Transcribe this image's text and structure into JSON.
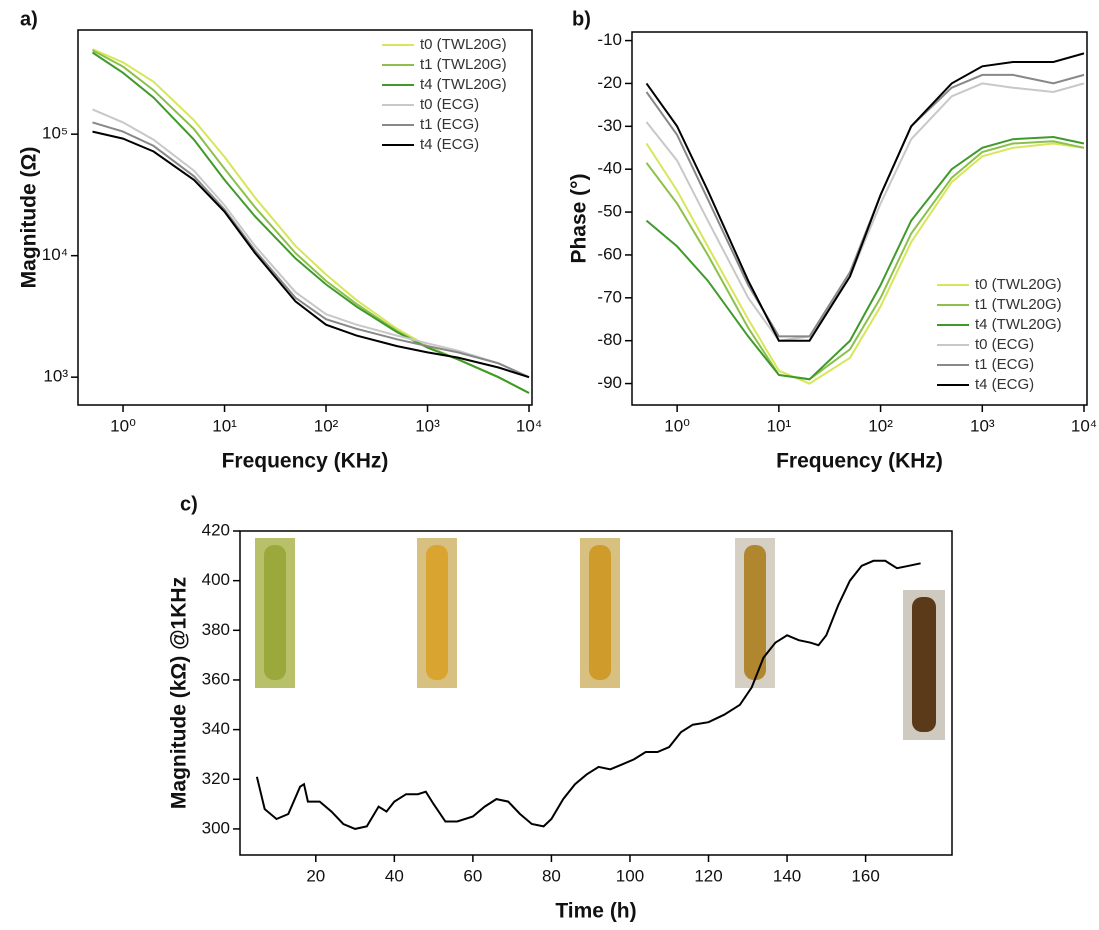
{
  "chart_data": [
    {
      "type": "line",
      "panel_label": "a)",
      "x_label": "Frequency (KHz)",
      "y_label": "Magnitude (Ω)",
      "xscale": "log",
      "yscale": "log",
      "xlim": [
        0.36,
        10700
      ],
      "ylim": [
        590,
        720000
      ],
      "xticks": [
        {
          "value": 1,
          "label": "10⁰"
        },
        {
          "value": 10,
          "label": "10¹"
        },
        {
          "value": 100,
          "label": "10²"
        },
        {
          "value": 1000,
          "label": "10³"
        },
        {
          "value": 10000,
          "label": "10⁴"
        }
      ],
      "yticks": [
        {
          "value": 1000,
          "label": "10³"
        },
        {
          "value": 10000,
          "label": "10⁴"
        },
        {
          "value": 100000,
          "label": "10⁵"
        }
      ],
      "legend": "upper right",
      "x": [
        0.5,
        1,
        2,
        5,
        10,
        20,
        50,
        100,
        200,
        500,
        1000,
        2000,
        5000,
        10000
      ],
      "series": [
        {
          "name": "t0 (TWL20G)",
          "color": "#d7e65a",
          "values": [
            500000,
            390000,
            270000,
            130000,
            65000,
            30000,
            12000,
            7000,
            4300,
            2500,
            1800,
            1400,
            1000,
            740
          ]
        },
        {
          "name": "t1 (TWL20G)",
          "color": "#8cc04a",
          "values": [
            490000,
            360000,
            230000,
            110000,
            52000,
            25000,
            10500,
            6200,
            4000,
            2400,
            1750,
            1400,
            1000,
            740
          ]
        },
        {
          "name": "t4 (TWL20G)",
          "color": "#3f9a2b",
          "values": [
            470000,
            320000,
            200000,
            90000,
            42000,
            21000,
            9500,
            5800,
            3800,
            2350,
            1750,
            1400,
            1000,
            740
          ]
        },
        {
          "name": "t0 (ECG)",
          "color": "#c8c8c8",
          "values": [
            160000,
            125000,
            90000,
            50000,
            26000,
            12000,
            5000,
            3300,
            2700,
            2200,
            1900,
            1650,
            1300,
            1000
          ]
        },
        {
          "name": "t1 (ECG)",
          "color": "#888888",
          "values": [
            125000,
            105000,
            80000,
            45000,
            24000,
            11000,
            4500,
            3000,
            2500,
            2050,
            1800,
            1600,
            1300,
            1000
          ]
        },
        {
          "name": "t4 (ECG)",
          "color": "#000000",
          "values": [
            105000,
            92000,
            72000,
            42000,
            23000,
            10500,
            4200,
            2700,
            2200,
            1800,
            1600,
            1450,
            1200,
            1000
          ]
        }
      ]
    },
    {
      "type": "line",
      "panel_label": "b)",
      "x_label": "Frequency (KHz)",
      "y_label": "Phase (°)",
      "xscale": "log",
      "xlim": [
        0.36,
        10700
      ],
      "ylim": [
        -95,
        -8
      ],
      "xticks": [
        {
          "value": 1,
          "label": "10⁰"
        },
        {
          "value": 10,
          "label": "10¹"
        },
        {
          "value": 100,
          "label": "10²"
        },
        {
          "value": 1000,
          "label": "10³"
        },
        {
          "value": 10000,
          "label": "10⁴"
        }
      ],
      "yticks": [
        -90,
        -80,
        -70,
        -60,
        -50,
        -40,
        -30,
        -20,
        -10
      ],
      "legend": "lower right",
      "x": [
        0.5,
        1,
        2,
        5,
        10,
        20,
        50,
        100,
        200,
        500,
        1000,
        2000,
        5000,
        10000
      ],
      "series": [
        {
          "name": "t0 (TWL20G)",
          "color": "#d7e65a",
          "values": [
            -34,
            -45,
            -58,
            -75,
            -87,
            -90,
            -84,
            -72,
            -57,
            -43,
            -37,
            -35,
            -34,
            -35
          ]
        },
        {
          "name": "t1 (TWL20G)",
          "color": "#8cc04a",
          "values": [
            -38.5,
            -48,
            -60,
            -77,
            -88,
            -89,
            -82,
            -70,
            -55,
            -42,
            -36,
            -34,
            -33.5,
            -35
          ]
        },
        {
          "name": "t4 (TWL20G)",
          "color": "#3f9a2b",
          "values": [
            -52,
            -58,
            -66,
            -79,
            -88,
            -89,
            -80,
            -67,
            -52,
            -40,
            -35,
            -33,
            -32.5,
            -34
          ]
        },
        {
          "name": "t0 (ECG)",
          "color": "#c8c8c8",
          "values": [
            -29,
            -38,
            -52,
            -70,
            -80,
            -79,
            -65,
            -48,
            -33,
            -23,
            -20,
            -21,
            -22,
            -20
          ]
        },
        {
          "name": "t1 (ECG)",
          "color": "#888888",
          "values": [
            -22,
            -32,
            -47,
            -67,
            -79,
            -79,
            -64,
            -46,
            -30,
            -21,
            -18,
            -18,
            -20,
            -18
          ]
        },
        {
          "name": "t4 (ECG)",
          "color": "#000000",
          "values": [
            -20,
            -30,
            -45,
            -66,
            -80,
            -80,
            -65,
            -46,
            -30,
            -20,
            -16,
            -15,
            -15,
            -13
          ]
        }
      ]
    },
    {
      "type": "line",
      "panel_label": "c)",
      "x_label": "Time (h)",
      "y_label": "Magnitude (kΩ) @1KHz",
      "xlim": [
        0.7,
        182
      ],
      "ylim": [
        289.5,
        420
      ],
      "xticks": [
        20,
        40,
        60,
        80,
        100,
        120,
        140,
        160
      ],
      "yticks": [
        300,
        320,
        340,
        360,
        380,
        400,
        420
      ],
      "x": [
        5,
        7,
        10,
        13,
        16,
        17,
        18,
        21,
        24,
        27,
        30,
        33,
        36,
        38,
        40,
        43,
        46,
        48,
        50,
        53,
        56,
        60,
        63,
        66,
        69,
        72,
        75,
        78,
        80,
        83,
        86,
        89,
        92,
        95,
        98,
        101,
        104,
        107,
        110,
        113,
        116,
        120,
        124,
        128,
        131,
        134,
        137,
        140,
        143,
        146,
        148,
        150,
        153,
        156,
        159,
        162,
        165,
        168,
        171,
        174
      ],
      "series": [
        {
          "color": "#000000",
          "values": [
            321,
            308,
            304,
            306,
            317,
            318,
            311,
            311,
            307,
            302,
            300,
            301,
            309,
            307,
            311,
            314,
            314,
            315,
            310,
            303,
            303,
            305,
            309,
            312,
            311,
            306,
            302,
            301,
            304,
            312,
            318,
            322,
            325,
            324,
            326,
            328,
            331,
            331,
            333,
            339,
            342,
            343,
            346,
            350,
            357,
            369,
            375,
            378,
            376,
            375,
            374,
            378,
            390,
            400,
            406,
            408,
            408,
            405,
            406,
            407
          ]
        }
      ]
    }
  ]
}
